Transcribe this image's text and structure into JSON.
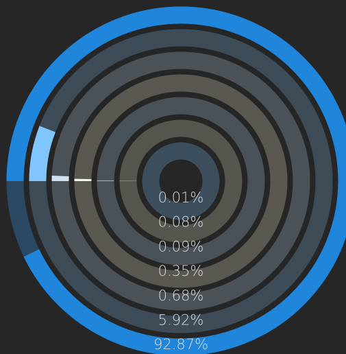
{
  "chart_data": {
    "type": "radial-bar",
    "values": [
      0.01,
      0.08,
      0.09,
      0.35,
      0.68,
      5.92,
      92.87
    ],
    "value_labels": [
      "0.01%",
      "0.08%",
      "0.09%",
      "0.35%",
      "0.68%",
      "5.92%",
      "92.87%"
    ],
    "colors": [
      "#e6eef5",
      "#c8d8e6",
      "#f2efe6",
      "#f4f4f4",
      "#cfe2f2",
      "#82c6ff",
      "#1f86dc"
    ],
    "track_colors": [
      "#3d4e5c",
      "#56564f",
      "#4a5259",
      "#5a5850",
      "#4c5358",
      "#3e4c58",
      "#2b4962"
    ],
    "ylim": [
      0,
      100
    ]
  }
}
